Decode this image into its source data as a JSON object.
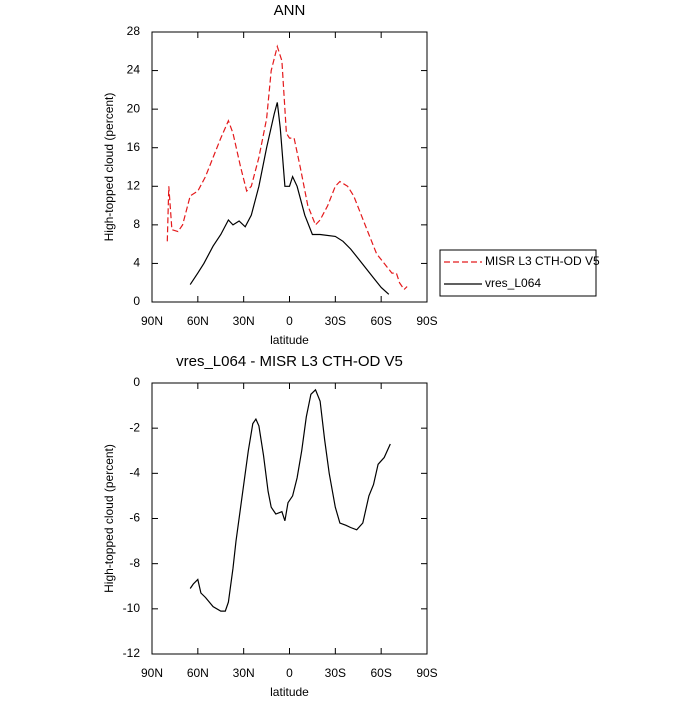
{
  "chart_data": [
    {
      "type": "line",
      "title": "ANN",
      "xlabel": "latitude",
      "ylabel": "High-topped cloud (percent)",
      "xlim": [
        90,
        -90
      ],
      "xticks": [
        {
          "value": 90,
          "label": "90N"
        },
        {
          "value": 60,
          "label": "60N"
        },
        {
          "value": 30,
          "label": "30N"
        },
        0,
        {
          "value": -30,
          "label": "30S"
        },
        {
          "value": -60,
          "label": "60S"
        },
        {
          "value": -90,
          "label": "90S"
        }
      ],
      "ylim": [
        0,
        28
      ],
      "yticks": [
        0,
        4,
        8,
        12,
        16,
        20,
        24,
        28
      ],
      "legend": "right",
      "series": [
        {
          "name": "MISR L3 CTH-OD V5",
          "color": "#e41a1c",
          "dash": true,
          "x": [
            80,
            79,
            77,
            73,
            70,
            65,
            60,
            55,
            50,
            45,
            40,
            37,
            32,
            28,
            25,
            20,
            15,
            12,
            8,
            5,
            2,
            0,
            -3,
            -7,
            -12,
            -17,
            -20,
            -25,
            -30,
            -33,
            -38,
            -42,
            -47,
            -52,
            -57,
            -62,
            -67,
            -70,
            -72,
            -75,
            -77
          ],
          "values": [
            6.3,
            12,
            7.5,
            7.3,
            8,
            11,
            11.5,
            13,
            15,
            17,
            18.8,
            17.5,
            14,
            11.5,
            12,
            15,
            19,
            24,
            26.5,
            25,
            17.5,
            17,
            17,
            14,
            10,
            8,
            8.5,
            10,
            12,
            12.5,
            12,
            11,
            9,
            7,
            5,
            4,
            3,
            3,
            2,
            1.3,
            1.6
          ]
        },
        {
          "name": "vres_L064",
          "color": "#000000",
          "dash": false,
          "x": [
            65,
            60,
            56,
            50,
            45,
            40,
            37,
            33,
            29,
            25,
            20,
            15,
            10,
            8,
            6,
            3,
            0,
            -2,
            -5,
            -10,
            -15,
            -20,
            -30,
            -35,
            -40,
            -45,
            -50,
            -55,
            -60,
            -65
          ],
          "values": [
            1.8,
            3,
            4,
            5.8,
            7,
            8.5,
            8,
            8.4,
            7.8,
            9,
            12,
            16,
            19.5,
            20.7,
            18,
            12,
            12,
            13,
            12,
            9,
            7,
            7,
            6.8,
            6.3,
            5.5,
            4.5,
            3.5,
            2.5,
            1.5,
            0.8
          ]
        }
      ]
    },
    {
      "type": "line",
      "title": "vres_L064 - MISR L3 CTH-OD V5",
      "xlabel": "latitude",
      "ylabel": "High-topped cloud (percent)",
      "xlim": [
        90,
        -90
      ],
      "xticks": [
        {
          "value": 90,
          "label": "90N"
        },
        {
          "value": 60,
          "label": "60N"
        },
        {
          "value": 30,
          "label": "30N"
        },
        0,
        {
          "value": -30,
          "label": "30S"
        },
        {
          "value": -60,
          "label": "60S"
        },
        {
          "value": -90,
          "label": "90S"
        }
      ],
      "ylim": [
        -12,
        0
      ],
      "yticks": [
        -12,
        -10,
        -8,
        -6,
        -4,
        -2,
        0
      ],
      "series": [
        {
          "color": "#000000",
          "dash": false,
          "x": [
            65,
            63,
            60,
            58,
            55,
            50,
            45,
            42,
            40,
            37,
            35,
            30,
            27,
            24,
            22,
            20,
            17,
            14,
            12,
            9,
            5,
            3,
            1,
            -2,
            -5,
            -8,
            -11,
            -14,
            -17,
            -20,
            -23,
            -26,
            -30,
            -33,
            -37,
            -40,
            -44,
            -48,
            -52,
            -55,
            -58,
            -62,
            -66
          ],
          "values": [
            -9.1,
            -8.9,
            -8.7,
            -9.3,
            -9.5,
            -9.9,
            -10.1,
            -10.1,
            -9.7,
            -8.2,
            -7,
            -4.5,
            -3,
            -1.8,
            -1.6,
            -1.9,
            -3.2,
            -4.8,
            -5.5,
            -5.8,
            -5.7,
            -6.1,
            -5.3,
            -5,
            -4.2,
            -3,
            -1.5,
            -0.5,
            -0.3,
            -0.8,
            -2.5,
            -4,
            -5.5,
            -6.2,
            -6.3,
            -6.4,
            -6.5,
            -6.2,
            -5,
            -4.5,
            -3.6,
            -3.3,
            -2.7
          ]
        }
      ]
    }
  ]
}
